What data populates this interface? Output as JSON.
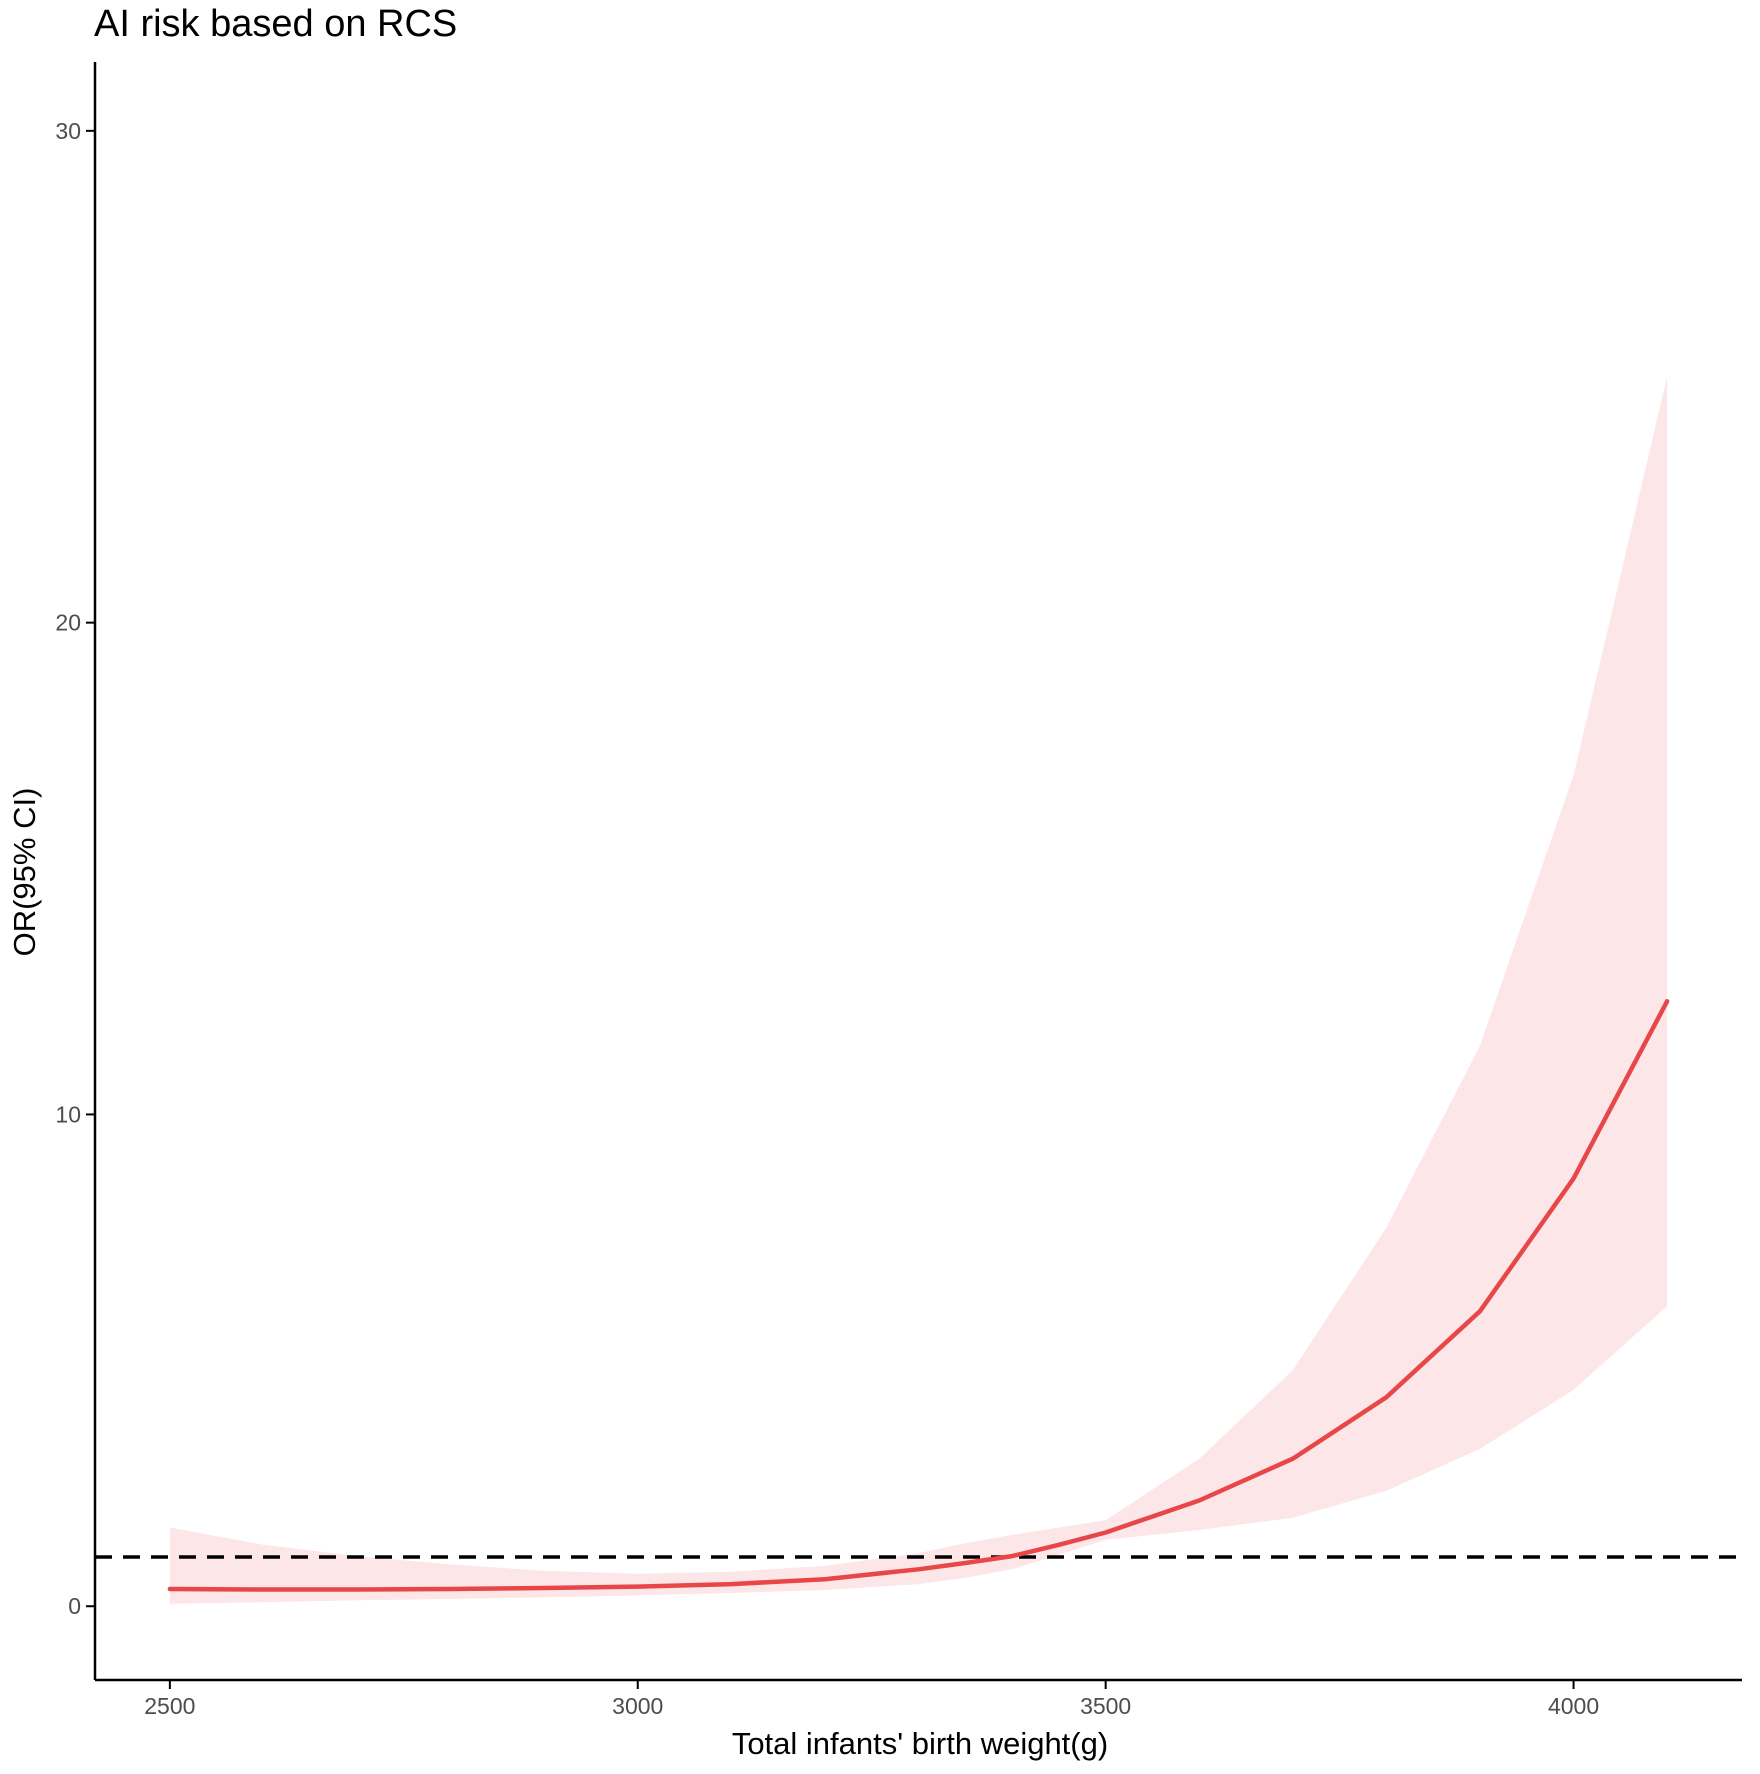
{
  "chart_data": {
    "type": "line",
    "title": "AI risk based on RCS",
    "xlabel": "Total infants' birth weight(g)",
    "ylabel": "OR(95% CI)",
    "xlim": [
      2420,
      4180
    ],
    "ylim": [
      -1.5,
      31.4
    ],
    "x_ticks": [
      2500,
      3000,
      3500,
      4000
    ],
    "y_ticks": [
      0,
      10,
      20,
      30
    ],
    "x_tick_labels": [
      "2500",
      "3000",
      "3500",
      "4000"
    ],
    "y_tick_labels": [
      "0",
      "10",
      "20",
      "30"
    ],
    "grid": false,
    "reference_line": {
      "y": 1,
      "style": "dashed"
    },
    "colors": {
      "line": "#e8474a",
      "band": "#fde6e7",
      "reference": "#000000",
      "axis": "#000000"
    },
    "series": [
      {
        "x": [
          2500,
          2600,
          2700,
          2800,
          2900,
          3000,
          3100,
          3200,
          3300,
          3350,
          3400,
          3450,
          3500,
          3600,
          3700,
          3800,
          3900,
          4000,
          4100
        ],
        "y": [
          0.35,
          0.34,
          0.34,
          0.35,
          0.37,
          0.4,
          0.45,
          0.55,
          0.75,
          0.88,
          1.02,
          1.25,
          1.5,
          2.15,
          3.0,
          4.25,
          6.0,
          8.7,
          12.3
        ],
        "lower": [
          0.05,
          0.08,
          0.12,
          0.15,
          0.18,
          0.22,
          0.27,
          0.33,
          0.45,
          0.58,
          0.75,
          1.05,
          1.35,
          1.55,
          1.8,
          2.35,
          3.2,
          4.4,
          6.1
        ],
        "upper": [
          1.6,
          1.25,
          1.02,
          0.85,
          0.72,
          0.66,
          0.7,
          0.82,
          1.08,
          1.28,
          1.45,
          1.6,
          1.75,
          3.0,
          4.8,
          7.7,
          11.4,
          16.9,
          25.0
        ]
      }
    ]
  }
}
